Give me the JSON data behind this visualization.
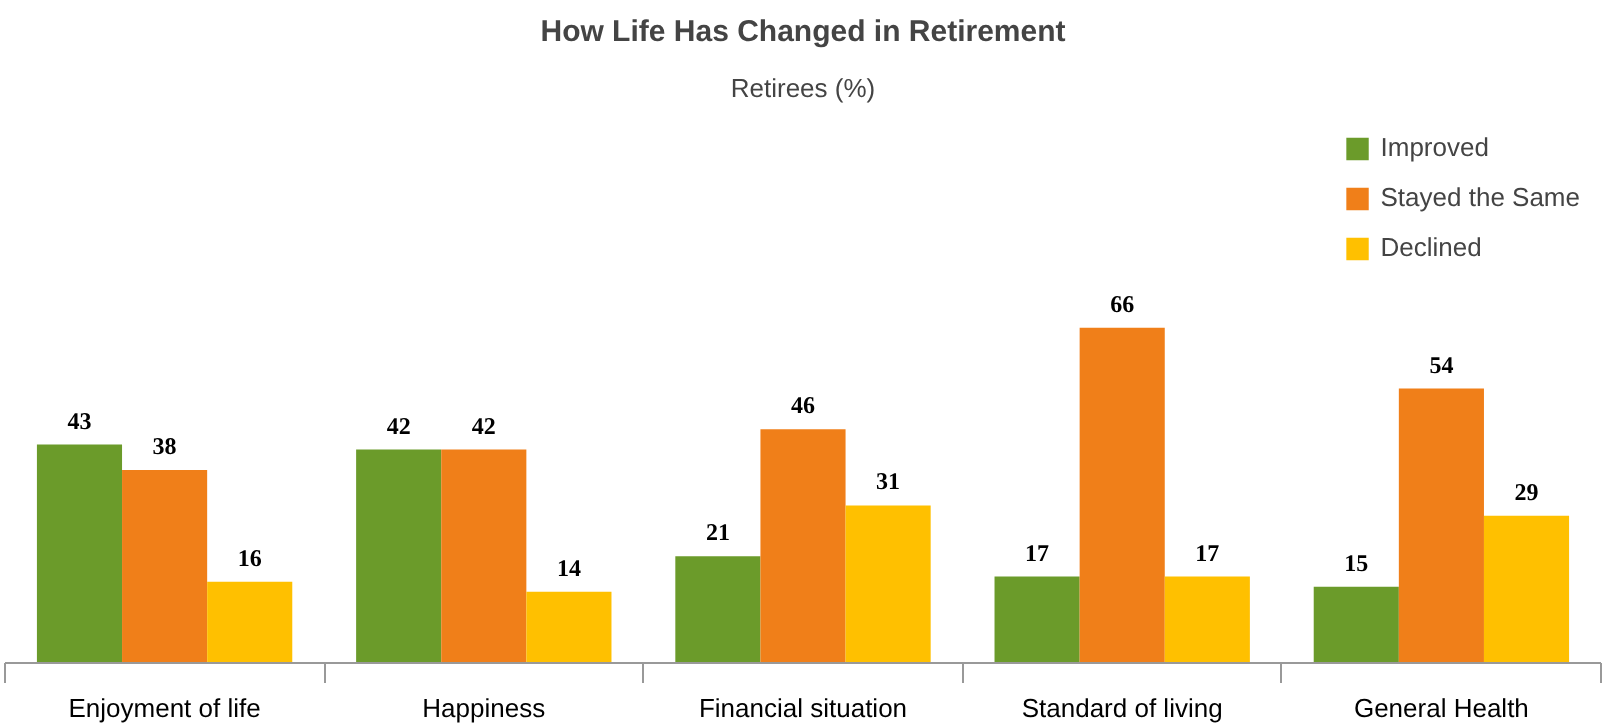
{
  "chart_data": {
    "type": "bar",
    "title": "How Life Has Changed in Retirement",
    "subtitle": "Retirees (%)",
    "categories": [
      "Enjoyment of life",
      "Happiness",
      "Financial situation",
      "Standard of living",
      "General Health"
    ],
    "series": [
      {
        "name": "Improved",
        "color": "#6b9b2a",
        "values": [
          43,
          42,
          21,
          17,
          15
        ]
      },
      {
        "name": "Stayed the Same",
        "color": "#f07f19",
        "values": [
          38,
          42,
          46,
          66,
          54
        ]
      },
      {
        "name": "Declined",
        "color": "#ffc000",
        "values": [
          16,
          14,
          31,
          17,
          29
        ]
      }
    ],
    "data_labels": true,
    "legend": "top right",
    "grid": false
  }
}
